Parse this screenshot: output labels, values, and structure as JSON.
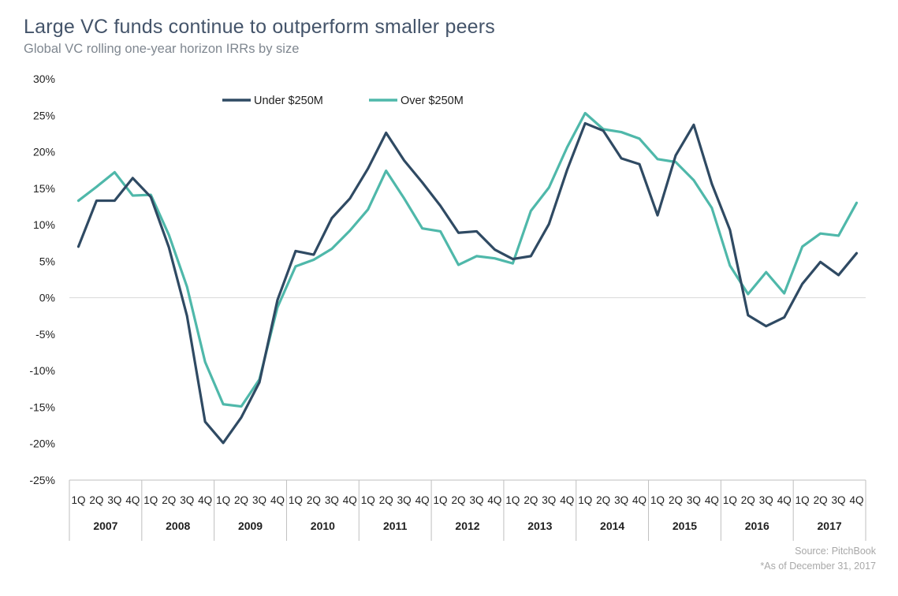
{
  "chart_data": {
    "type": "line",
    "title": "Large VC funds continue to outperform smaller peers",
    "subtitle": "Global VC rolling one-year horizon IRRs by size",
    "ylim": [
      -25,
      30
    ],
    "yticks": [
      "30%",
      "25%",
      "20%",
      "15%",
      "10%",
      "5%",
      "0%",
      "-5%",
      "-10%",
      "-15%",
      "-20%",
      "-25%"
    ],
    "ytick_values": [
      30,
      25,
      20,
      15,
      10,
      5,
      0,
      -5,
      -10,
      -15,
      -20,
      -25
    ],
    "quarters": [
      "1Q",
      "2Q",
      "3Q",
      "4Q"
    ],
    "years": [
      "2007",
      "2008",
      "2009",
      "2010",
      "2011",
      "2012",
      "2013",
      "2014",
      "2015",
      "2016",
      "2017"
    ],
    "legend_position": "top-center",
    "series": [
      {
        "name": "Under $250M",
        "color": "#2f4a63",
        "values": [
          7.0,
          13.3,
          13.3,
          16.4,
          13.8,
          6.9,
          -2.5,
          -17.0,
          -19.9,
          -16.4,
          -11.6,
          -0.3,
          6.4,
          5.9,
          10.9,
          13.6,
          17.7,
          22.6,
          18.8,
          15.8,
          12.6,
          8.9,
          9.1,
          6.6,
          5.3,
          5.7,
          10.1,
          17.5,
          23.9,
          22.9,
          19.1,
          18.3,
          11.3,
          19.5,
          23.7,
          15.6,
          9.3,
          -2.4,
          -3.9,
          -2.7,
          1.9,
          4.9,
          3.1,
          6.1
        ]
      },
      {
        "name": "Over $250M",
        "color": "#4fb8aa",
        "values": [
          13.3,
          15.2,
          17.2,
          14.0,
          14.1,
          8.6,
          1.5,
          -8.8,
          -14.6,
          -14.9,
          -11.2,
          -1.3,
          4.3,
          5.2,
          6.7,
          9.2,
          12.1,
          17.4,
          13.6,
          9.5,
          9.1,
          4.5,
          5.7,
          5.4,
          4.7,
          11.9,
          15.1,
          20.6,
          25.3,
          23.1,
          22.7,
          21.8,
          19.0,
          18.6,
          16.1,
          12.3,
          4.4,
          0.5,
          3.5,
          0.6,
          7.0,
          8.8,
          8.5,
          13.0
        ]
      }
    ]
  },
  "source_label": "Source: PitchBook",
  "asof_label": "*As of December 31, 2017"
}
